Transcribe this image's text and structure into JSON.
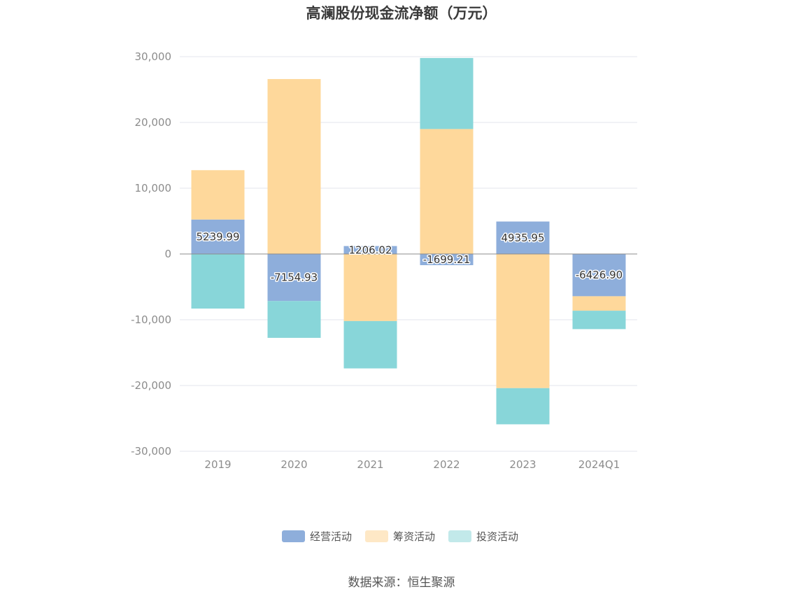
{
  "chart_data": {
    "type": "bar",
    "stacked": true,
    "title": "高澜股份现金流净额（万元）",
    "categories": [
      "2019",
      "2020",
      "2021",
      "2022",
      "2023",
      "2024Q1"
    ],
    "series": [
      {
        "name": "经营活动",
        "color": "#8eaedb",
        "values": [
          5239.99,
          -7154.93,
          1206.02,
          -1699.21,
          4935.95,
          -6426.9
        ]
      },
      {
        "name": "筹资活动",
        "color": "#fed89b",
        "values": [
          7500,
          26600,
          -10200,
          19000,
          -20400,
          -2200
        ]
      },
      {
        "name": "投资活动",
        "color": "#88d6d9",
        "values": [
          -8300,
          -5600,
          -7200,
          10800,
          -5500,
          -2800
        ]
      }
    ],
    "data_labels": [
      "5239.99",
      "-7154.93",
      "1206.02",
      "-1699.21",
      "4935.95",
      "-6426.90"
    ],
    "ylim": [
      -30000,
      30000
    ],
    "yticks": [
      30000,
      20000,
      10000,
      0,
      -10000,
      -20000,
      -30000
    ],
    "ytick_labels": [
      "30,000",
      "20,000",
      "10,000",
      "0",
      "-10,000",
      "-20,000",
      "-30,000"
    ],
    "grid": true,
    "legend_position": "bottom-center",
    "legend_inactive_colors": [
      "#8eaedb",
      "#fee8c6",
      "#c2e9ea"
    ]
  },
  "source": "数据来源：恒生聚源"
}
